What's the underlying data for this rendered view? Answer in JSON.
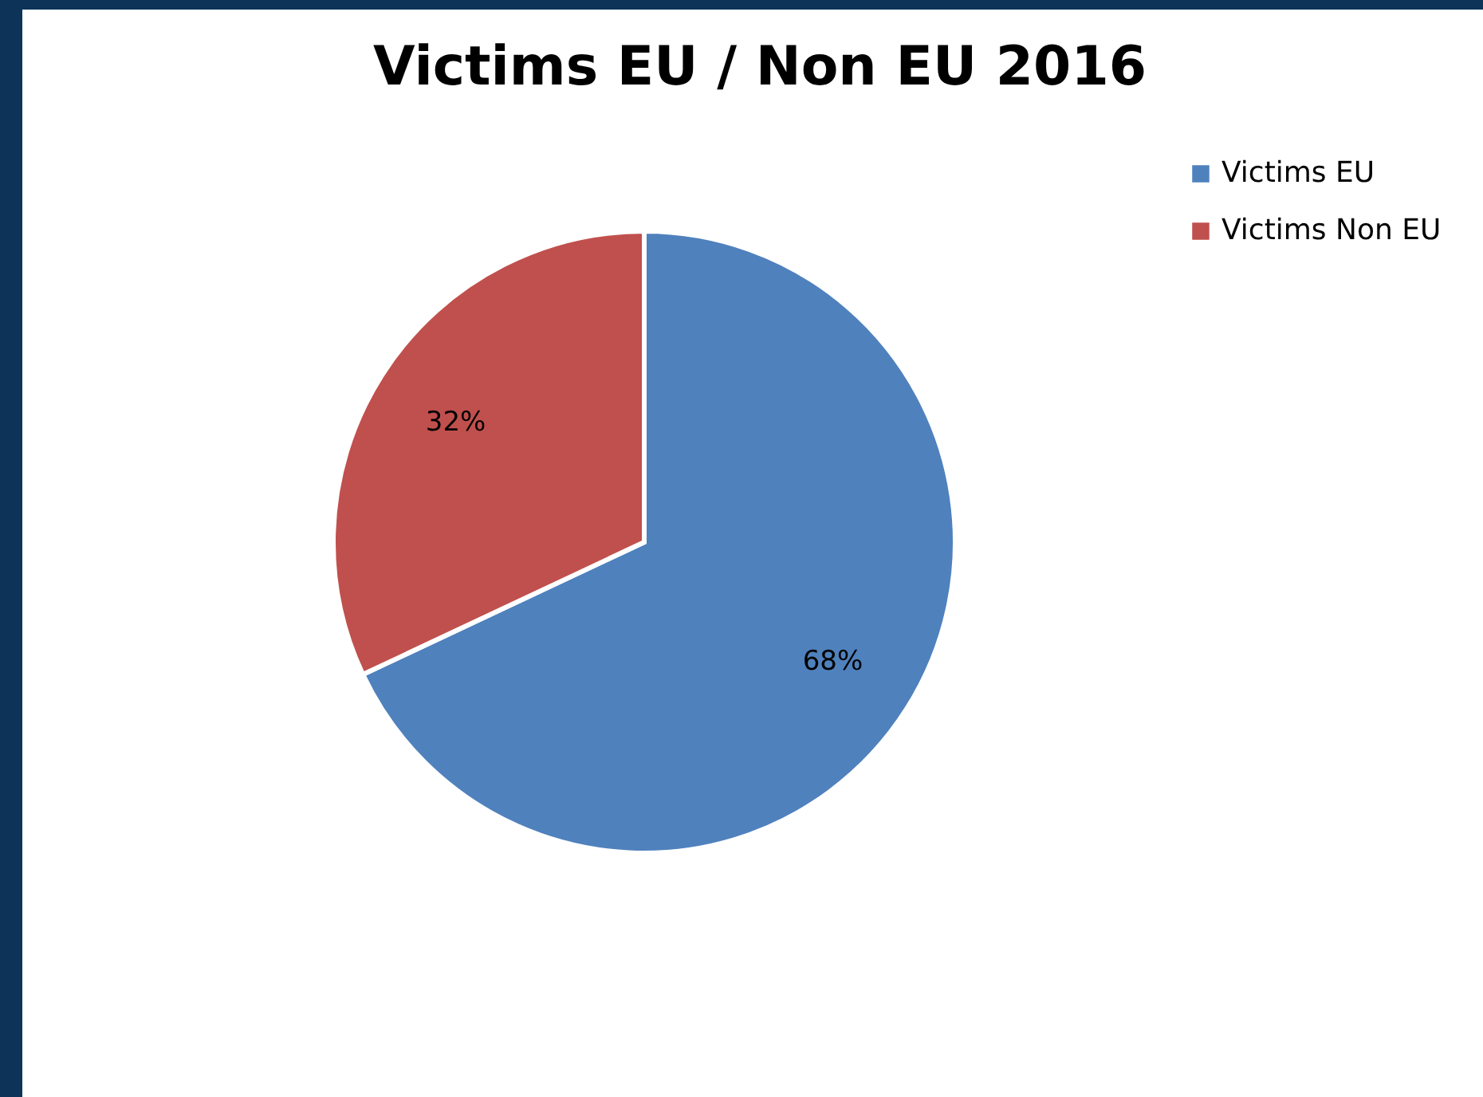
{
  "chart_data": {
    "type": "pie",
    "title": "Victims EU / Non EU 2016",
    "categories": [
      "Victims EU",
      "Victims Non EU"
    ],
    "values": [
      68,
      32
    ],
    "value_labels": [
      "68%",
      "32%"
    ],
    "colors": [
      "#4f81bd",
      "#c0504d"
    ],
    "legend": "right"
  }
}
